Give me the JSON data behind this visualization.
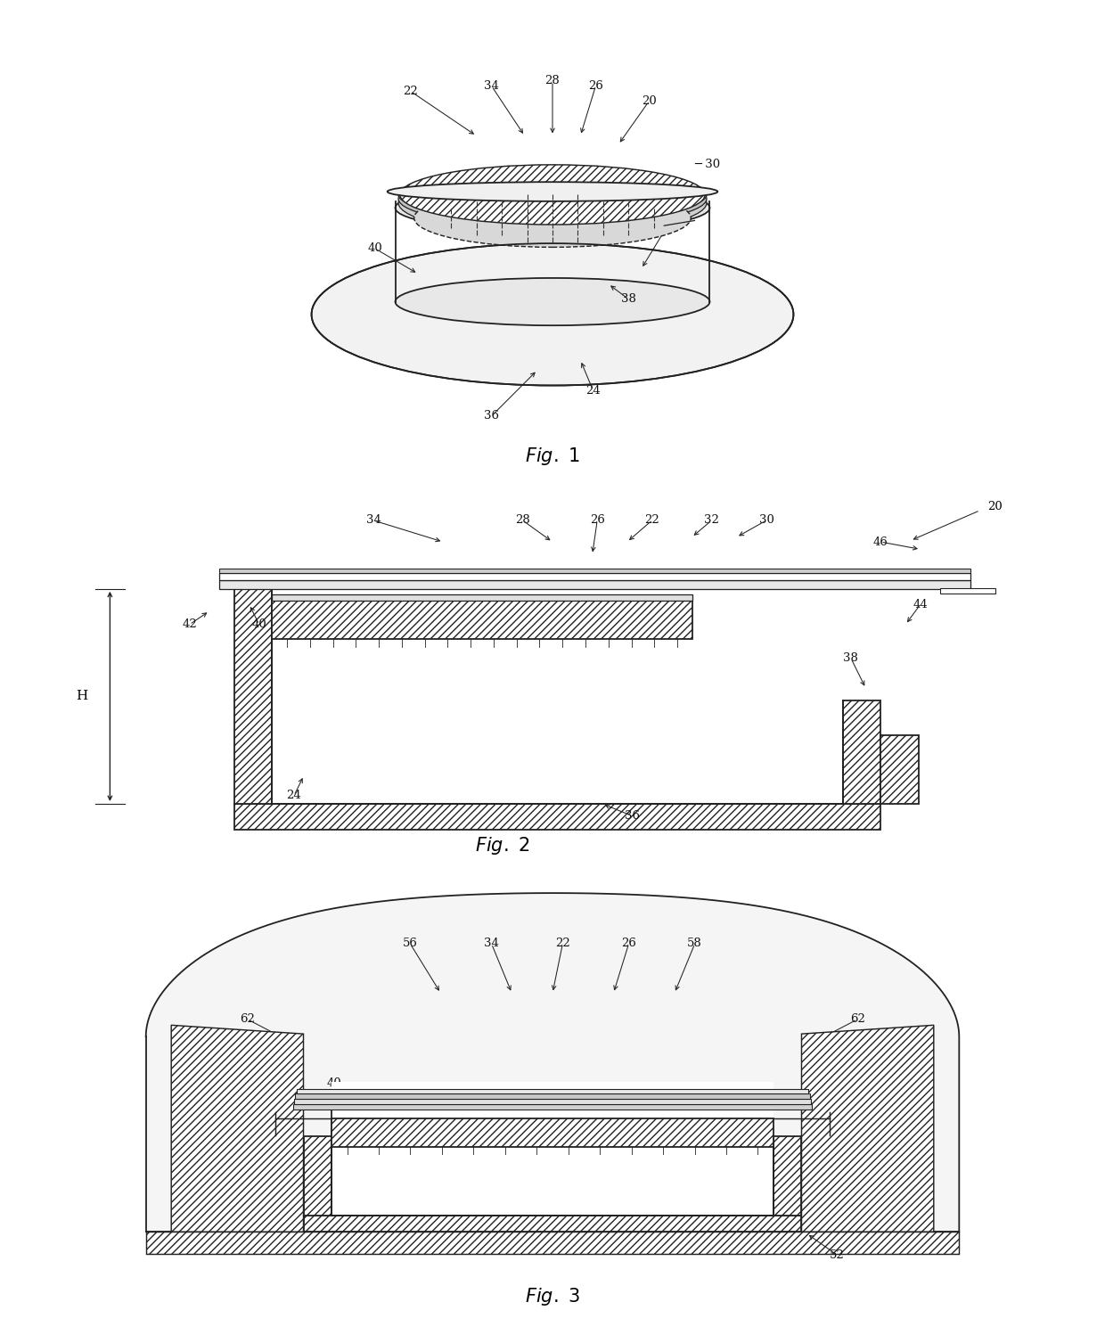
{
  "bg_color": "#ffffff",
  "line_color": "#222222",
  "fig1_title": "Fig. 1",
  "fig2_title": "Fig. 2",
  "fig3_title": "Fig. 3"
}
